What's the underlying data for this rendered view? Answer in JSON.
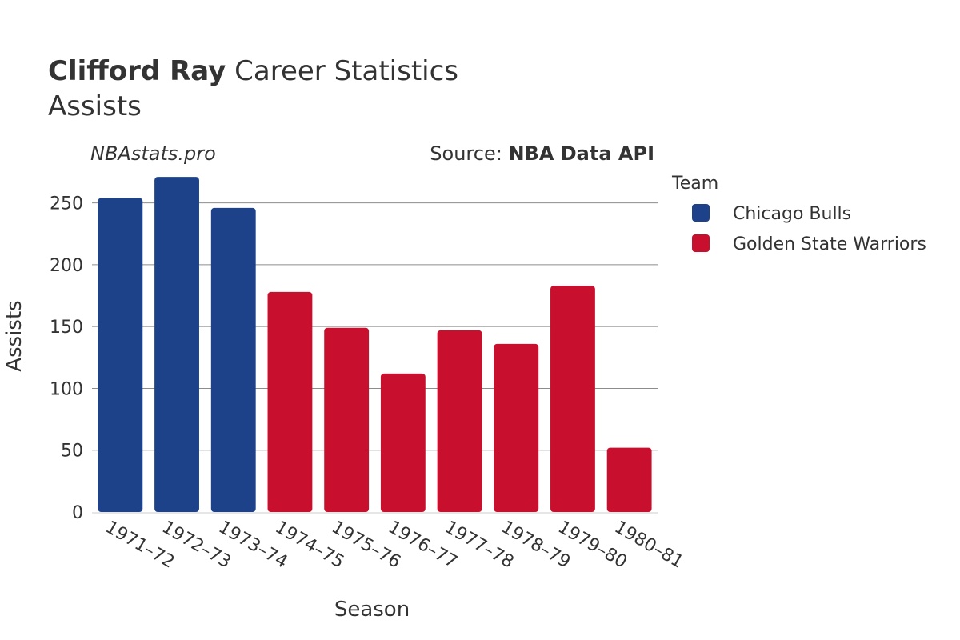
{
  "header": {
    "player_name": "Clifford Ray",
    "title_rest": " Career Statistics",
    "subtitle": "Assists"
  },
  "watermark": "NBAstats.pro",
  "source": {
    "label": "Source: ",
    "value": "NBA Data API"
  },
  "legend": {
    "title": "Team",
    "items": [
      {
        "name": "Chicago Bulls",
        "color": "#1d428a"
      },
      {
        "name": "Golden State Warriors",
        "color": "#c8102e"
      }
    ]
  },
  "chart_data": {
    "type": "bar",
    "xlabel": "Season",
    "ylabel": "Assists",
    "ylim": [
      0,
      275
    ],
    "yticks": [
      0,
      50,
      100,
      150,
      200,
      250
    ],
    "grid": true,
    "legend_position": "right",
    "categories": [
      "1971–72",
      "1972–73",
      "1973–74",
      "1974–75",
      "1975–76",
      "1976–77",
      "1977–78",
      "1978–79",
      "1979–80",
      "1980–81"
    ],
    "values": [
      254,
      271,
      246,
      178,
      149,
      112,
      147,
      136,
      183,
      52
    ],
    "teams": [
      "Chicago Bulls",
      "Chicago Bulls",
      "Chicago Bulls",
      "Golden State Warriors",
      "Golden State Warriors",
      "Golden State Warriors",
      "Golden State Warriors",
      "Golden State Warriors",
      "Golden State Warriors",
      "Golden State Warriors"
    ]
  }
}
